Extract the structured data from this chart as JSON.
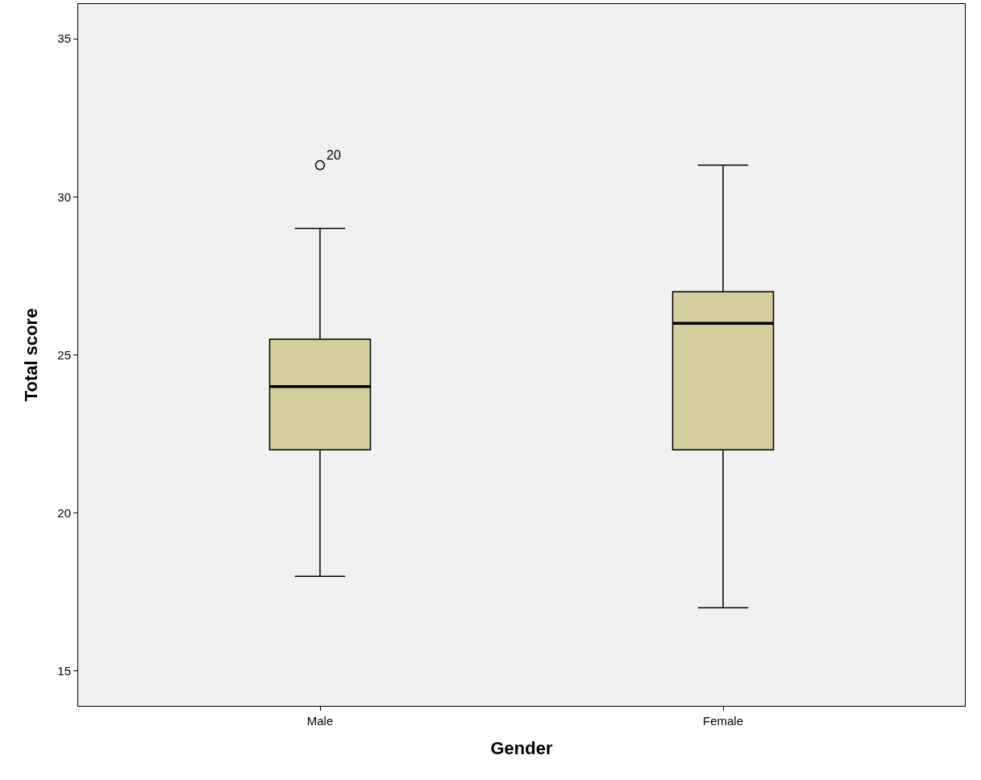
{
  "chart_data": {
    "type": "box",
    "xlabel": "Gender",
    "ylabel": "Total score",
    "categories": [
      "Male",
      "Female"
    ],
    "color": "#d3ce9b",
    "boxes": [
      {
        "low": 18,
        "q1": 22,
        "median": 24,
        "q3": 25.5,
        "high": 29,
        "outliers": [
          31
        ]
      },
      {
        "low": 17,
        "q1": 22,
        "median": 26,
        "q3": 27,
        "high": 31
      }
    ],
    "ylim": [
      13.9,
      36.1
    ],
    "yticks": [
      15,
      20,
      25,
      30,
      35
    ],
    "grid": false,
    "marker": "circle",
    "annotations": [
      "20"
    ]
  }
}
